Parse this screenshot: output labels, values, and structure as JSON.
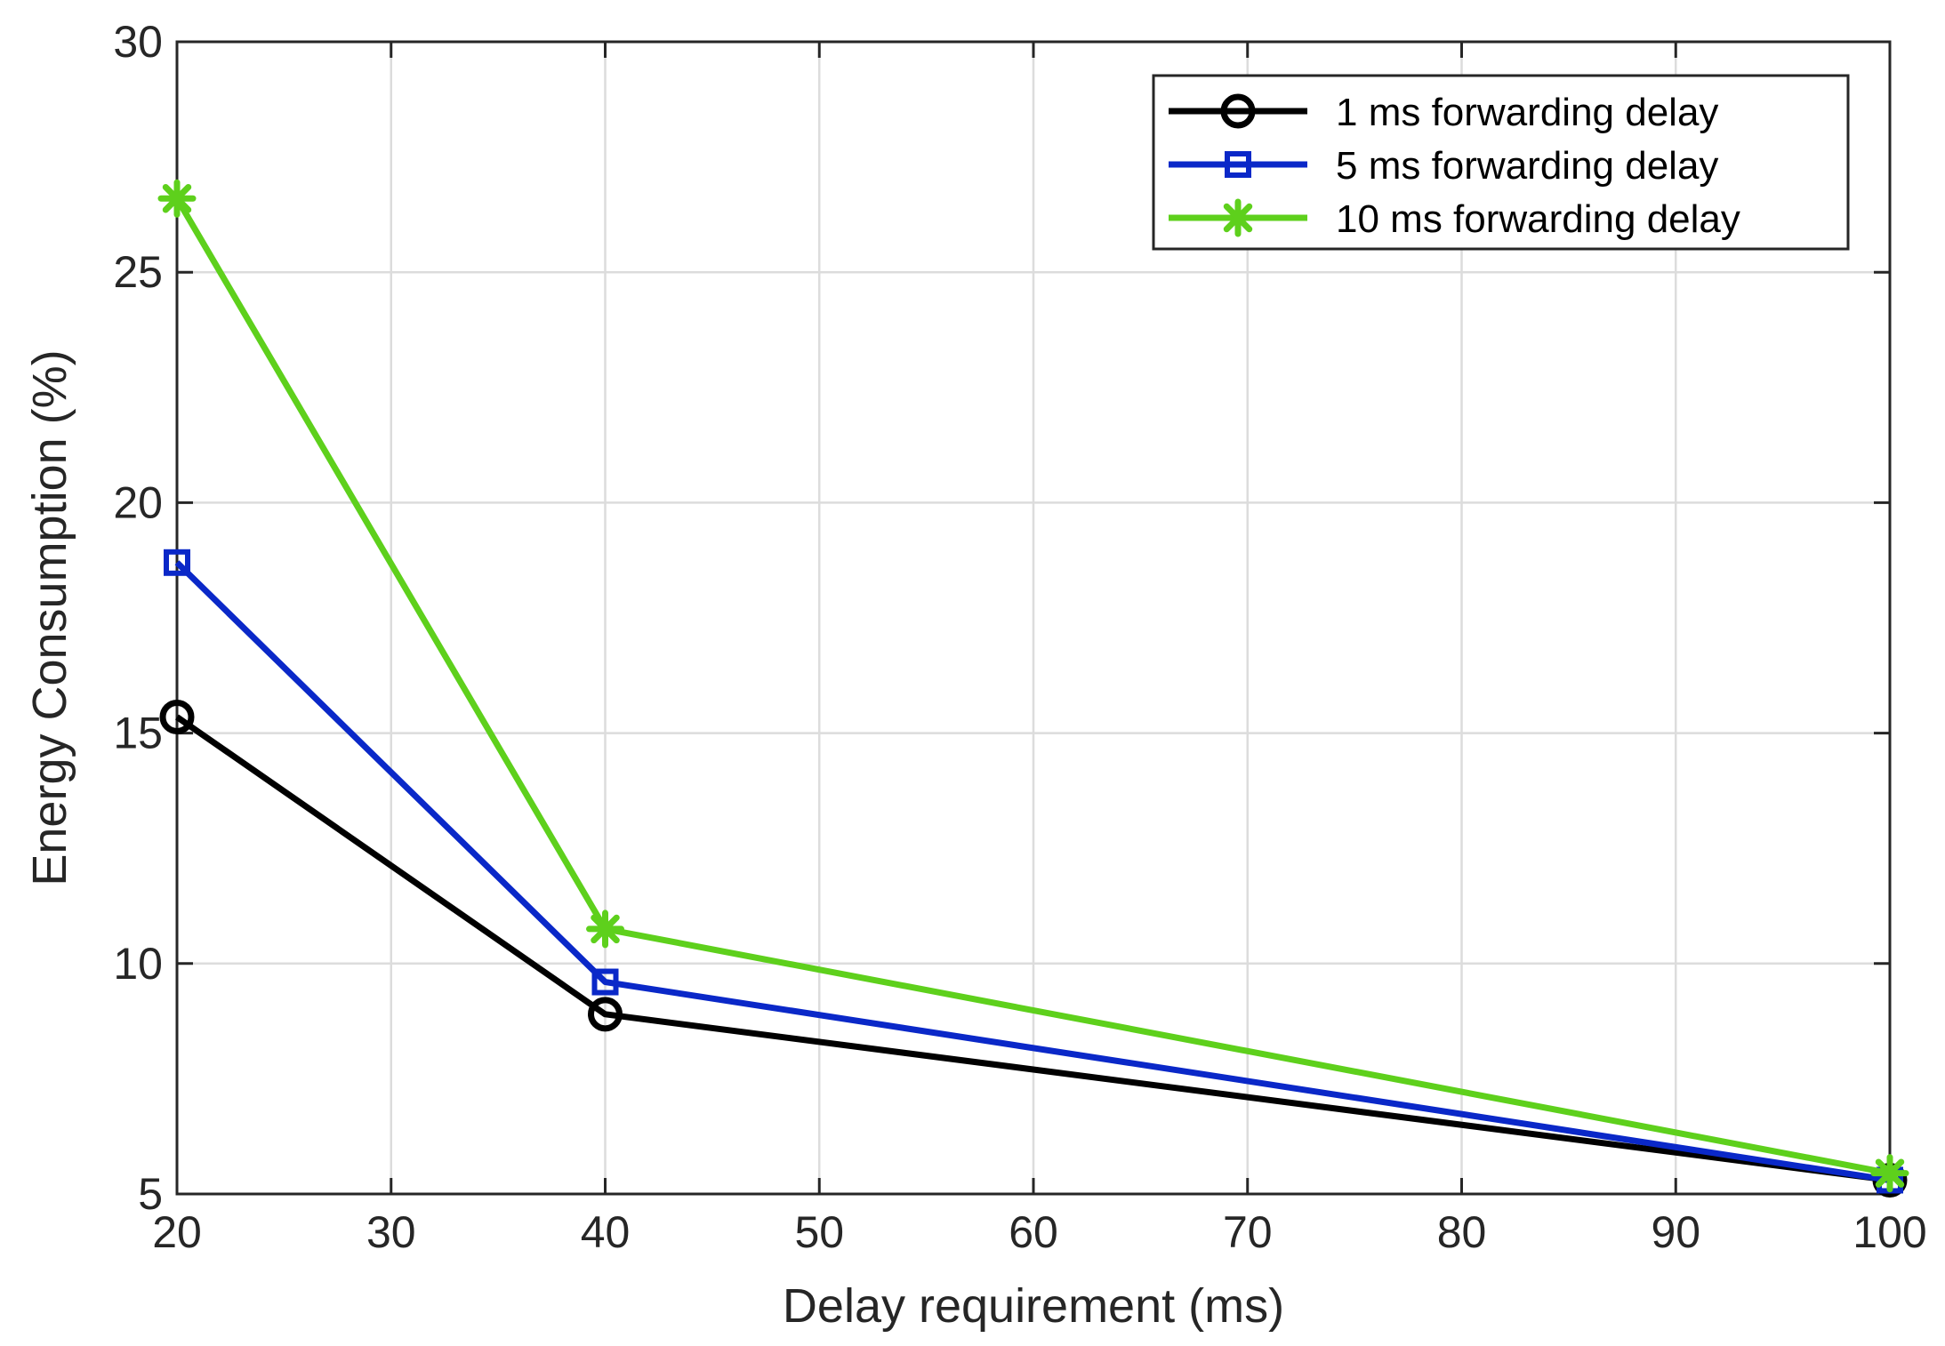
{
  "chart_data": {
    "type": "line",
    "title": "",
    "xlabel": "Delay requirement (ms)",
    "ylabel": "Energy Consumption (%)",
    "xlim": [
      20,
      100
    ],
    "ylim": [
      5,
      30
    ],
    "xticks": [
      20,
      30,
      40,
      50,
      60,
      70,
      80,
      90,
      100
    ],
    "yticks": [
      5,
      10,
      15,
      20,
      25,
      30
    ],
    "grid": true,
    "legend_position": "top-right",
    "x": [
      20,
      40,
      100
    ],
    "series": [
      {
        "name": "1 ms forwarding delay",
        "values": [
          15.35,
          8.9,
          5.3
        ],
        "color": "#000000",
        "marker": "circle"
      },
      {
        "name": "5 ms forwarding delay",
        "values": [
          18.7,
          9.6,
          5.3
        ],
        "color": "#0a28c8",
        "marker": "square"
      },
      {
        "name": "10 ms forwarding delay",
        "values": [
          26.6,
          10.75,
          5.45
        ],
        "color": "#5ed01c",
        "marker": "asterisk"
      }
    ]
  }
}
